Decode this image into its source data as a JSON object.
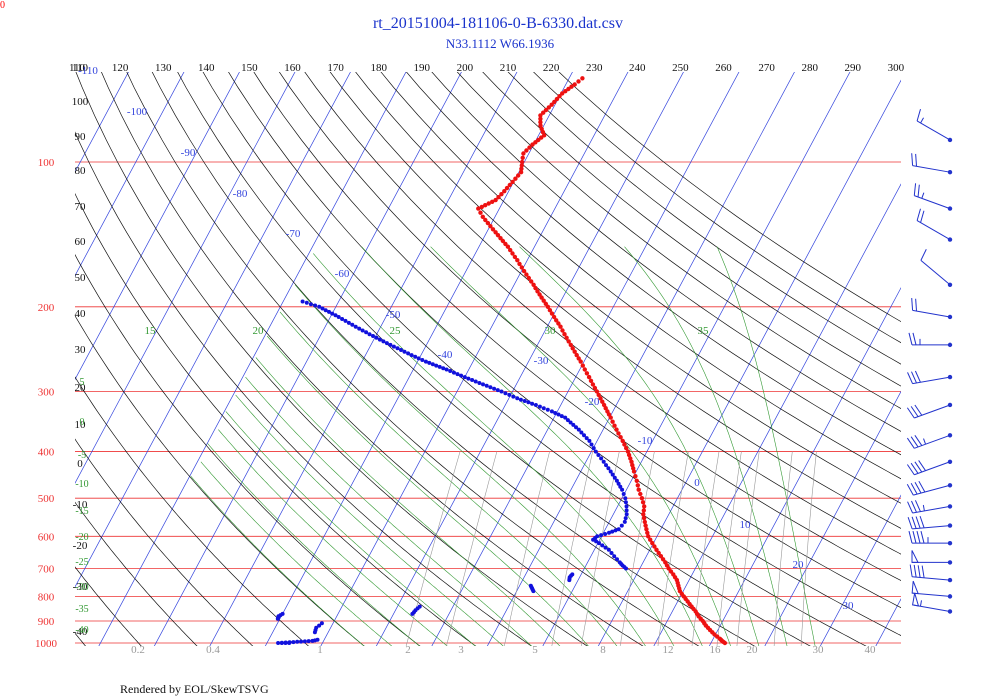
{
  "corner_label": "0",
  "footer": "Rendered by EOL/SkewTSVG",
  "chart_data": {
    "type": "skew-t",
    "title": "rt_20151004-181106-0-B-6330.dat.csv",
    "subtitle": "N33.1112 W66.1936",
    "pressure_labels": [
      "100",
      "200",
      "300",
      "400",
      "500",
      "600",
      "700",
      "800",
      "900",
      "1000"
    ],
    "top_axis_labels": [
      "110",
      "120",
      "130",
      "140",
      "150",
      "160",
      "170",
      "180",
      "190",
      "200",
      "210",
      "220",
      "230",
      "240",
      "250",
      "260",
      "270",
      "280",
      "290",
      "300"
    ],
    "potential_temp_labels": [
      "110",
      "100",
      "90",
      "80",
      "70",
      "60",
      "50",
      "40",
      "30",
      "20",
      "10",
      "0",
      "-10",
      "-20",
      "-30",
      "-40"
    ],
    "isotherm_labels": [
      "-110",
      "-100",
      "-90",
      "-80",
      "-70",
      "-60",
      "-50",
      "-40",
      "-30",
      "-20",
      "-10",
      "0",
      "10",
      "20",
      "30"
    ],
    "moist_adiabat_labels": [
      "15",
      "20",
      "25",
      "30",
      "35"
    ],
    "moist_left_labels": [
      "5",
      "0",
      "-5",
      "-10",
      "-15",
      "-20",
      "-25",
      "-30",
      "-35",
      "-40"
    ],
    "mixing_ratio_labels": [
      "0.2",
      "0.4",
      "1",
      "2",
      "3",
      "5",
      "8",
      "12",
      "16",
      "20",
      "30",
      "40"
    ],
    "temperature_profile": [
      [
        1000,
        22.5
      ],
      [
        990,
        21.8
      ],
      [
        980,
        21.2
      ],
      [
        960,
        19.8
      ],
      [
        940,
        18.6
      ],
      [
        920,
        17.4
      ],
      [
        900,
        16.4
      ],
      [
        880,
        15.2
      ],
      [
        860,
        14.2
      ],
      [
        840,
        13.0
      ],
      [
        820,
        11.8
      ],
      [
        800,
        10.6
      ],
      [
        780,
        9.4
      ],
      [
        760,
        8.6
      ],
      [
        740,
        7.8
      ],
      [
        720,
        6.6
      ],
      [
        700,
        5.2
      ],
      [
        680,
        4.0
      ],
      [
        660,
        2.6
      ],
      [
        640,
        1.2
      ],
      [
        620,
        -0.2
      ],
      [
        600,
        -1.6
      ],
      [
        580,
        -2.6
      ],
      [
        560,
        -3.6
      ],
      [
        540,
        -4.6
      ],
      [
        520,
        -5.2
      ],
      [
        500,
        -6.4
      ],
      [
        480,
        -7.8
      ],
      [
        460,
        -9.0
      ],
      [
        440,
        -10.4
      ],
      [
        420,
        -11.8
      ],
      [
        400,
        -13.4
      ],
      [
        380,
        -15.4
      ],
      [
        360,
        -17.6
      ],
      [
        340,
        -19.8
      ],
      [
        320,
        -22.2
      ],
      [
        300,
        -24.8
      ],
      [
        280,
        -27.6
      ],
      [
        260,
        -30.6
      ],
      [
        240,
        -34.0
      ],
      [
        220,
        -37.6
      ],
      [
        200,
        -41.8
      ],
      [
        180,
        -46.5
      ],
      [
        160,
        -51.8
      ],
      [
        150,
        -54.8
      ],
      [
        140,
        -58.4
      ],
      [
        130,
        -62.2
      ],
      [
        125,
        -63.8
      ],
      [
        120,
        -61.5
      ],
      [
        115,
        -60.8
      ],
      [
        110,
        -60.2
      ],
      [
        105,
        -59.6
      ],
      [
        100,
        -60.4
      ],
      [
        96,
        -61.0
      ],
      [
        92,
        -60.2
      ],
      [
        88,
        -59.0
      ],
      [
        84,
        -60.6
      ],
      [
        80,
        -61.6
      ],
      [
        76,
        -60.6
      ],
      [
        72,
        -59.8
      ],
      [
        69,
        -58.4
      ],
      [
        67,
        -57.6
      ]
    ],
    "dewpoint_profile": [
      [
        700,
        -2.5
      ],
      [
        690,
        -3.4
      ],
      [
        680,
        -4.2
      ],
      [
        660,
        -5.8
      ],
      [
        640,
        -7.4
      ],
      [
        620,
        -9.8
      ],
      [
        610,
        -11.2
      ],
      [
        600,
        -10.8
      ],
      [
        590,
        -9.0
      ],
      [
        580,
        -7.6
      ],
      [
        560,
        -7.2
      ],
      [
        540,
        -7.6
      ],
      [
        520,
        -8.4
      ],
      [
        500,
        -9.4
      ],
      [
        480,
        -10.8
      ],
      [
        460,
        -12.6
      ],
      [
        440,
        -14.6
      ],
      [
        420,
        -16.8
      ],
      [
        400,
        -19.2
      ],
      [
        380,
        -21.4
      ],
      [
        360,
        -24.4
      ],
      [
        340,
        -28.0
      ],
      [
        330,
        -31.0
      ],
      [
        320,
        -34.5
      ],
      [
        310,
        -38.5
      ],
      [
        300,
        -42.0
      ],
      [
        290,
        -46.0
      ],
      [
        280,
        -50.0
      ],
      [
        270,
        -54.0
      ],
      [
        260,
        -58.5
      ],
      [
        250,
        -62.5
      ],
      [
        240,
        -66.5
      ],
      [
        230,
        -70.5
      ],
      [
        220,
        -74.5
      ],
      [
        210,
        -78.5
      ],
      [
        200,
        -83.0
      ],
      [
        195,
        -86.5
      ]
    ],
    "dewpoint_low_fragments": [
      [
        [
          760,
          -18.0
        ],
        [
          770,
          -17.5
        ],
        [
          780,
          -17.0
        ]
      ],
      [
        [
          840,
          -36.0
        ],
        [
          855,
          -36.4
        ],
        [
          870,
          -36.6
        ]
      ],
      [
        [
          870,
          -60.0
        ],
        [
          880,
          -60.5
        ],
        [
          890,
          -60.4
        ]
      ],
      [
        [
          910,
          -52.0
        ],
        [
          930,
          -52.6
        ],
        [
          950,
          -52.4
        ]
      ],
      [
        [
          1000,
          -56.0
        ],
        [
          1000,
          -58.0
        ],
        [
          990,
          -52.0
        ],
        [
          985,
          -51.2
        ]
      ],
      [
        [
          720,
          -11.6
        ],
        [
          730,
          -11.8
        ],
        [
          740,
          -11.6
        ]
      ]
    ],
    "wind_barbs": [
      {
        "pressure": 90,
        "dir": 300,
        "speed": 15
      },
      {
        "pressure": 105,
        "dir": 280,
        "speed": 20
      },
      {
        "pressure": 125,
        "dir": 290,
        "speed": 25
      },
      {
        "pressure": 145,
        "dir": 300,
        "speed": 20
      },
      {
        "pressure": 180,
        "dir": 310,
        "speed": 10
      },
      {
        "pressure": 210,
        "dir": 280,
        "speed": 20
      },
      {
        "pressure": 240,
        "dir": 270,
        "speed": 25
      },
      {
        "pressure": 280,
        "dir": 260,
        "speed": 30
      },
      {
        "pressure": 320,
        "dir": 250,
        "speed": 30
      },
      {
        "pressure": 370,
        "dir": 250,
        "speed": 35
      },
      {
        "pressure": 420,
        "dir": 250,
        "speed": 40
      },
      {
        "pressure": 470,
        "dir": 255,
        "speed": 40
      },
      {
        "pressure": 520,
        "dir": 260,
        "speed": 35
      },
      {
        "pressure": 570,
        "dir": 265,
        "speed": 40
      },
      {
        "pressure": 620,
        "dir": 270,
        "speed": 45
      },
      {
        "pressure": 680,
        "dir": 270,
        "speed": 50
      },
      {
        "pressure": 740,
        "dir": 275,
        "speed": 40
      },
      {
        "pressure": 800,
        "dir": 275,
        "speed": 50
      },
      {
        "pressure": 860,
        "dir": 280,
        "speed": 55
      }
    ],
    "colors": {
      "temperature": "#ee1111",
      "dewpoint": "#1111dd",
      "isobar": "#ee3333",
      "isotherm": "#3344dd",
      "dry_adiabat": "#111111",
      "moist_adiabat": "#339933",
      "mixing_ratio": "#999999",
      "barb": "#2233cc"
    }
  }
}
